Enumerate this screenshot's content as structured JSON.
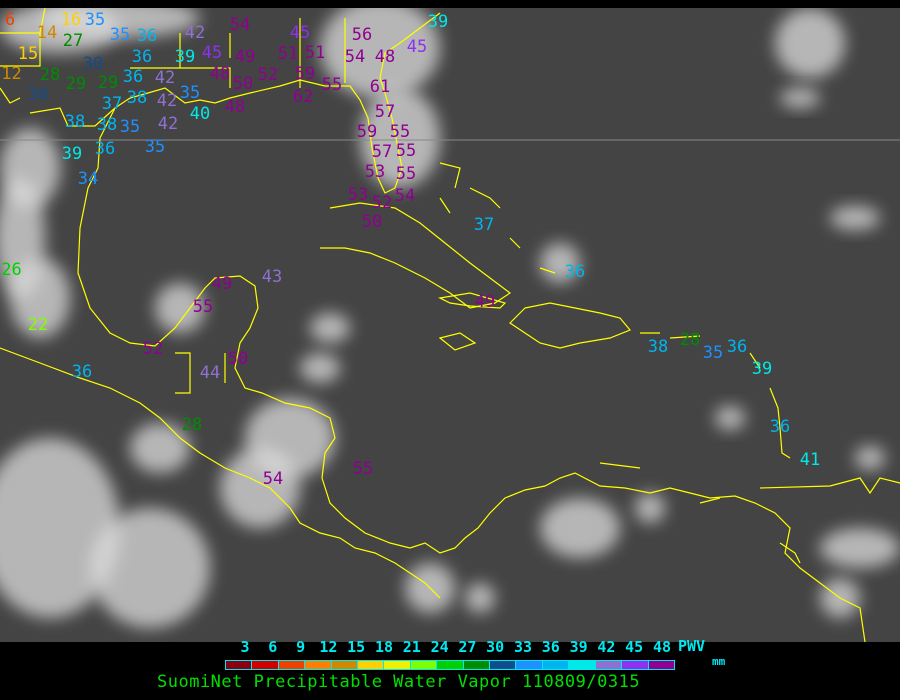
{
  "title": "SuomiNet Precipitable Water Vapor 110809/0315",
  "legend": {
    "ticks": [
      "3",
      "6",
      "9",
      "12",
      "15",
      "18",
      "21",
      "24",
      "27",
      "30",
      "33",
      "36",
      "39",
      "42",
      "45",
      "48"
    ],
    "unit_top": "PWV",
    "unit_bottom": "mm",
    "colors": [
      "#8b0010",
      "#d00000",
      "#f04000",
      "#ff8000",
      "#d08800",
      "#ffd000",
      "#f0f000",
      "#80ff00",
      "#00d000",
      "#008c00",
      "#104e8b",
      "#1e90ff",
      "#00b4f0",
      "#00e8e8",
      "#9070d0",
      "#9030f0",
      "#900090"
    ]
  },
  "map": {
    "coastline_color": "#ffff00",
    "stations": [
      "6",
      "14",
      "16",
      "15",
      "12",
      "27",
      "30",
      "28",
      "29",
      "29",
      "36",
      "30",
      "38",
      "37",
      "42",
      "39",
      "45",
      "42",
      "35",
      "35",
      "36",
      "36",
      "35",
      "42",
      "40",
      "42",
      "38",
      "38",
      "35",
      "35",
      "39",
      "36",
      "34",
      "54",
      "45",
      "51",
      "49",
      "52",
      "59",
      "51",
      "55",
      "48",
      "50",
      "48",
      "56",
      "54",
      "48",
      "45",
      "39",
      "61",
      "62",
      "57",
      "55",
      "59",
      "57",
      "55",
      "55",
      "53",
      "54",
      "52",
      "53",
      "50",
      "37",
      "36",
      "49",
      "43",
      "49",
      "55",
      "52",
      "50",
      "44",
      "28",
      "54",
      "55",
      "36",
      "22",
      "26",
      "38",
      "28",
      "35",
      "36",
      "39",
      "36",
      "41"
    ]
  }
}
